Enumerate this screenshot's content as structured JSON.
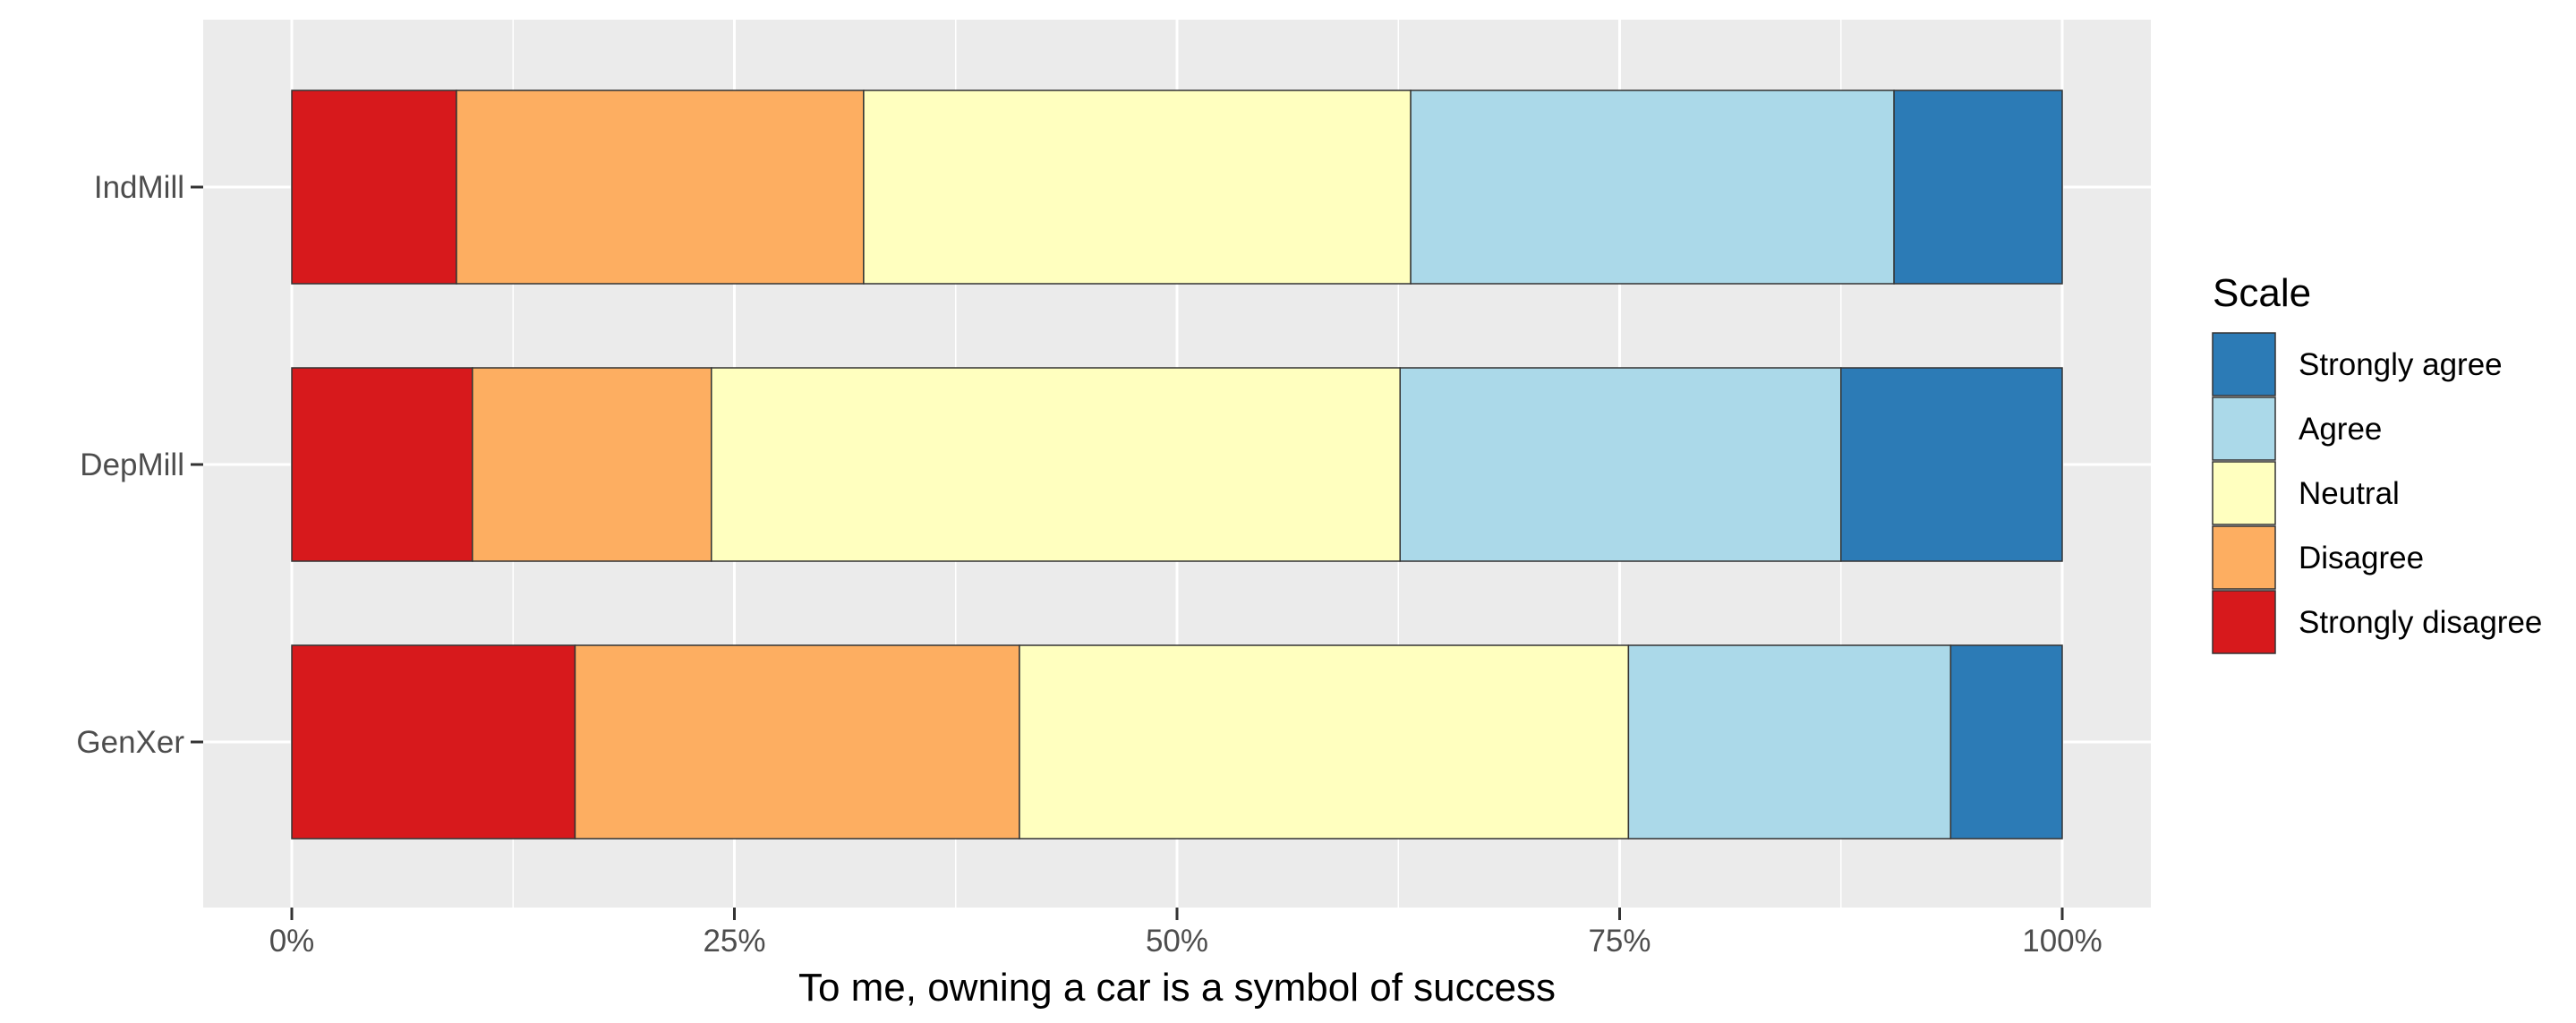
{
  "chart_data": {
    "type": "bar",
    "orientation": "horizontal",
    "stacked": "percent",
    "categories": [
      "IndMill",
      "DepMill",
      "GenXer"
    ],
    "xlabel": "To me, owning a car is a symbol of success",
    "ylabel": "",
    "xlim": [
      0,
      1
    ],
    "x_ticks": [
      "0%",
      "25%",
      "50%",
      "75%",
      "100%"
    ],
    "grid": true,
    "legend": {
      "title": "Scale",
      "position": "right",
      "entries": [
        "Strongly agree",
        "Agree",
        "Neutral",
        "Disagree",
        "Strongly disagree"
      ]
    },
    "series": [
      {
        "name": "Strongly disagree",
        "color": "#d7191c",
        "values": [
          0.093,
          0.102,
          0.16
        ]
      },
      {
        "name": "Disagree",
        "color": "#fdae61",
        "values": [
          0.23,
          0.135,
          0.251
        ]
      },
      {
        "name": "Neutral",
        "color": "#ffffbf",
        "values": [
          0.309,
          0.389,
          0.344
        ]
      },
      {
        "name": "Agree",
        "color": "#abd9e9",
        "values": [
          0.273,
          0.249,
          0.182
        ]
      },
      {
        "name": "Strongly agree",
        "color": "#2c7bb6",
        "values": [
          0.095,
          0.125,
          0.063
        ]
      }
    ]
  }
}
